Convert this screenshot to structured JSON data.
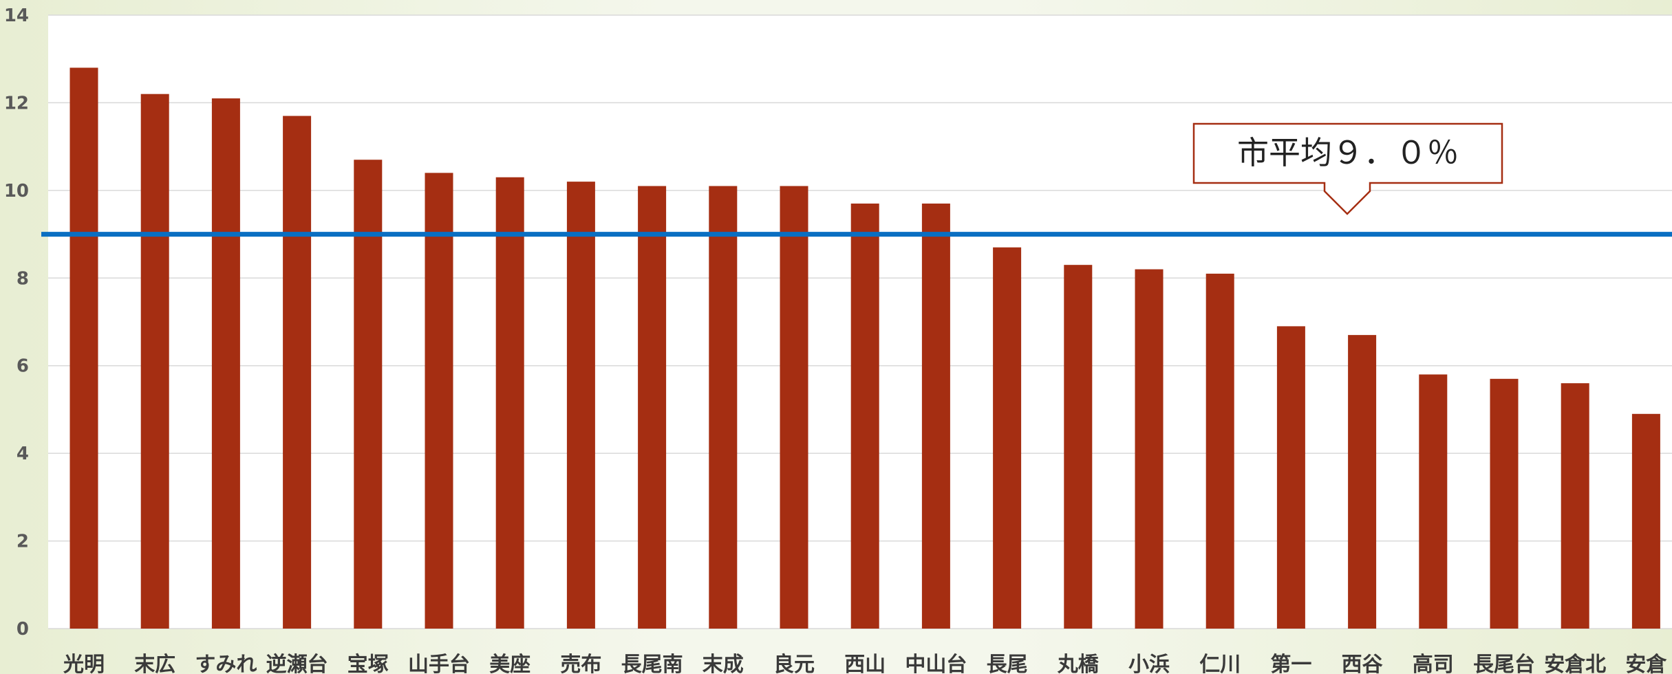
{
  "chart_data": {
    "type": "bar",
    "title": "",
    "xlabel": "",
    "ylabel": "",
    "ylim": [
      0,
      14
    ],
    "yticks": [
      0,
      2,
      4,
      6,
      8,
      10,
      12,
      14
    ],
    "grid": true,
    "legend": "none",
    "categories": [
      "光明",
      "末広",
      "すみれ",
      "逆瀬台",
      "宝塚",
      "山手台",
      "美座",
      "売布",
      "長尾南",
      "末成",
      "良元",
      "西山",
      "中山台",
      "長尾",
      "丸橋",
      "小浜",
      "仁川",
      "第一",
      "西谷",
      "高司",
      "長尾台",
      "安倉北",
      "安倉"
    ],
    "values": [
      12.8,
      12.2,
      12.1,
      11.7,
      10.7,
      10.4,
      10.3,
      10.2,
      10.1,
      10.1,
      10.1,
      9.7,
      9.7,
      8.7,
      8.3,
      8.2,
      8.1,
      6.9,
      6.7,
      5.8,
      5.7,
      5.6,
      4.9
    ],
    "reference_line": {
      "value": 9.0,
      "label": "市平均９．０％"
    },
    "colors": {
      "bar": "#a52e12",
      "reference_line": "#0a6fc2",
      "grid": "#d9d9d9",
      "callout_border": "#a52e12",
      "axis_text": "#595959",
      "category_text": "#3a3a3a"
    }
  }
}
